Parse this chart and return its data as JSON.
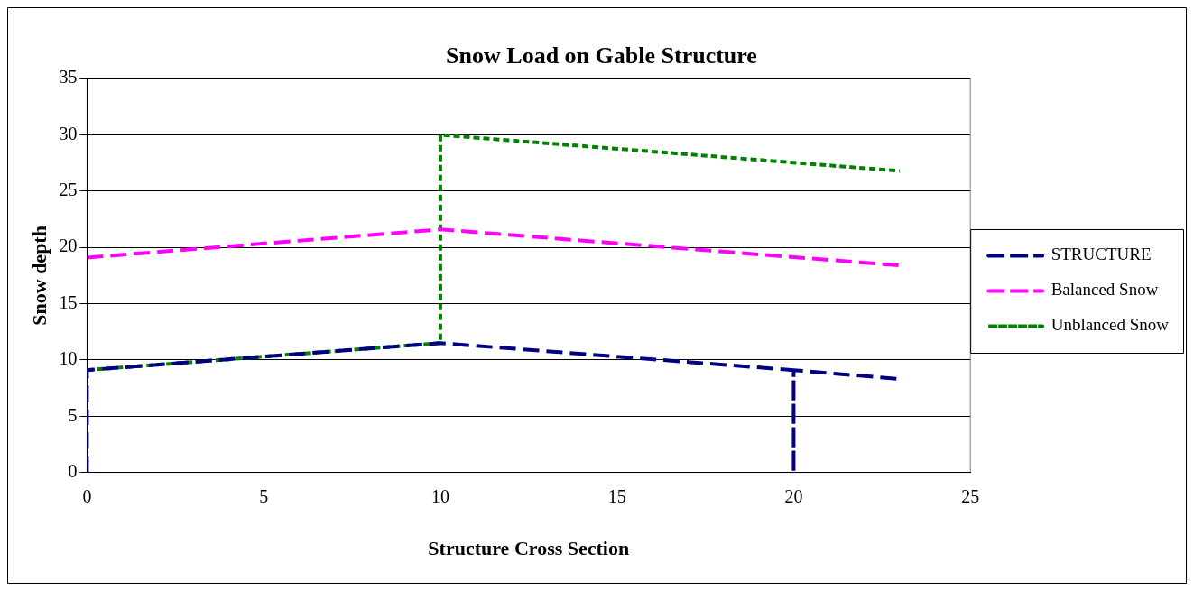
{
  "chart_data": {
    "type": "line",
    "title": "Snow Load on Gable Structure",
    "xlabel": "Structure Cross Section",
    "ylabel": "Snow depth",
    "xlim": [
      0,
      25
    ],
    "xticks": [
      0,
      5,
      10,
      15,
      20,
      25
    ],
    "ylim": [
      0,
      35
    ],
    "yticks": [
      0,
      5,
      10,
      15,
      20,
      25,
      30,
      35
    ],
    "grid": "y",
    "legend": "right",
    "marker": "none",
    "series": [
      {
        "name": "STRUCTURE",
        "color": "#000080",
        "line_style": "dashed",
        "x": [
          0,
          0,
          10,
          20,
          20,
          20,
          23
        ],
        "values": [
          0,
          9.1,
          11.5,
          9.1,
          0,
          9.1,
          8.3
        ]
      },
      {
        "name": "Balanced Snow",
        "color": "#ff00ff",
        "line_style": "dashed",
        "x": [
          0,
          10,
          23
        ],
        "values": [
          19.1,
          21.6,
          18.4
        ]
      },
      {
        "name": "Unblanced Snow",
        "color": "#008000",
        "line_style": "dotted",
        "x": [
          0,
          10,
          10,
          23
        ],
        "values": [
          9.1,
          11.5,
          30,
          26.8
        ]
      }
    ]
  }
}
